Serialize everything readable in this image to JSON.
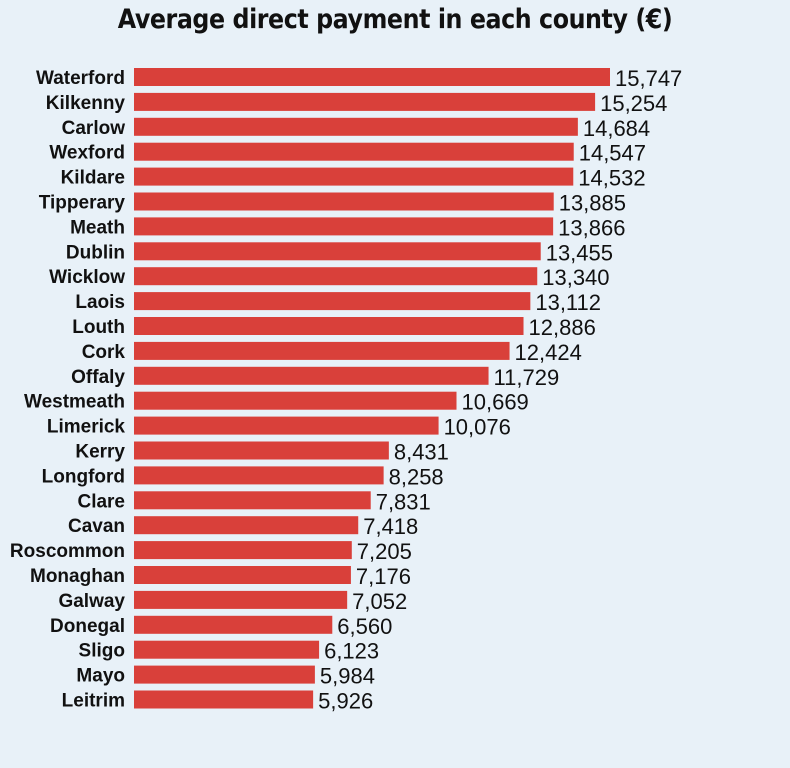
{
  "chart_data": {
    "type": "bar",
    "orientation": "horizontal",
    "title": "Average direct payment in each county (€)",
    "bar_color": "#d9403a",
    "background": "#e8f1f8",
    "categories": [
      "Waterford",
      "Kilkenny",
      "Carlow",
      "Wexford",
      "Kildare",
      "Tipperary",
      "Meath",
      "Dublin",
      "Wicklow",
      "Laois",
      "Louth",
      "Cork",
      "Offaly",
      "Westmeath",
      "Limerick",
      "Kerry",
      "Longford",
      "Clare",
      "Cavan",
      "Roscommon",
      "Monaghan",
      "Galway",
      "Donegal",
      "Sligo",
      "Mayo",
      "Leitrim"
    ],
    "values": [
      15747,
      15254,
      14684,
      14547,
      14532,
      13885,
      13866,
      13455,
      13340,
      13112,
      12886,
      12424,
      11729,
      10669,
      10076,
      8431,
      8258,
      7831,
      7418,
      7205,
      7176,
      7052,
      6560,
      6123,
      5984,
      5926
    ],
    "value_labels": [
      "15,747",
      "15,254",
      "14,684",
      "14,547",
      "14,532",
      "13,885",
      "13,866",
      "13,455",
      "13,340",
      "13,112",
      "12,886",
      "12,424",
      "11,729",
      "10,669",
      "10,076",
      "8,431",
      "8,258",
      "7,831",
      "7,418",
      "7,205",
      "7,176",
      "7,052",
      "6,560",
      "6,123",
      "5,984",
      "5,926"
    ],
    "xlim": [
      0,
      15747
    ]
  }
}
